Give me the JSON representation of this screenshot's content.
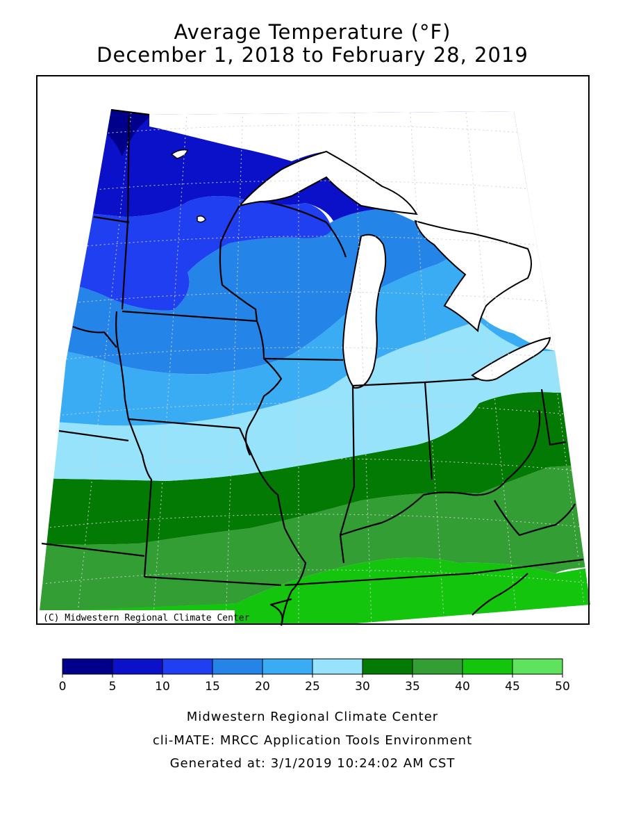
{
  "title": {
    "line1": "Average Temperature (°F)",
    "line2": "December 1, 2018 to February 28, 2019"
  },
  "map": {
    "copyright": "(C) Midwestern Regional Climate Center",
    "shading_bands_degF": [
      {
        "band": "0-5",
        "color": "#00008b"
      },
      {
        "band": "5-10",
        "color": "#0b10c9"
      },
      {
        "band": "10-15",
        "color": "#1f3ff0"
      },
      {
        "band": "15-20",
        "color": "#2584e8"
      },
      {
        "band": "20-25",
        "color": "#3aacf4"
      },
      {
        "band": "25-30",
        "color": "#97e3fb"
      },
      {
        "band": "30-35",
        "color": "#037a03"
      },
      {
        "band": "35-40",
        "color": "#329e33"
      },
      {
        "band": "40-45",
        "color": "#14c50e"
      },
      {
        "band": "45-50",
        "color": "#5fe35f"
      }
    ]
  },
  "legend": {
    "ticks": [
      "0",
      "5",
      "10",
      "15",
      "20",
      "25",
      "30",
      "35",
      "40",
      "45",
      "50"
    ],
    "colors": [
      "#00008b",
      "#0b10c9",
      "#1f3ff0",
      "#2584e8",
      "#3aacf4",
      "#97e3fb",
      "#037a03",
      "#329e33",
      "#14c50e",
      "#5fe35f"
    ]
  },
  "footer": {
    "line1": "Midwestern Regional Climate Center",
    "line2": "cli-MATE: MRCC Application Tools Environment",
    "line3": "Generated at: 3/1/2019 10:24:02 AM CST"
  }
}
